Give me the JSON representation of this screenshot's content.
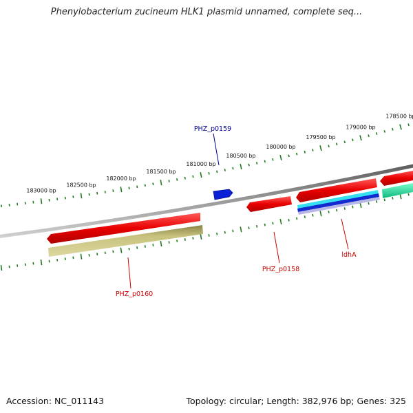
{
  "title": "Phenylobacterium zucineum HLK1 plasmid unnamed, complete seq...",
  "footer": {
    "accession": "Accession: NC_011143",
    "stats": "Topology: circular; Length: 382,976 bp; Genes: 325"
  },
  "ruler": {
    "unit": "bp",
    "labels": [
      "183000 bp",
      "182500 bp",
      "182000 bp",
      "181500 bp",
      "181000 bp",
      "180500 bp",
      "180000 bp",
      "179500 bp",
      "179000 bp",
      "178500 bp"
    ]
  },
  "gene_labels": [
    {
      "text": "PHZ_p0159",
      "color": "#00008b"
    },
    {
      "text": "PHZ_p0160",
      "color": "#cc0000"
    },
    {
      "text": "PHZ_p0158",
      "color": "#cc0000"
    },
    {
      "text": "ldhA",
      "color": "#cc0000"
    }
  ],
  "colors": {
    "backbone": "#7f7f7f",
    "ticks": "#1f7a1f",
    "cds": "#ee1111",
    "olive_feature": "#c2bc76",
    "cyan_feature": "#33ddee",
    "blue_feature": "#1122cc",
    "teal_feature": "#22dd99"
  }
}
